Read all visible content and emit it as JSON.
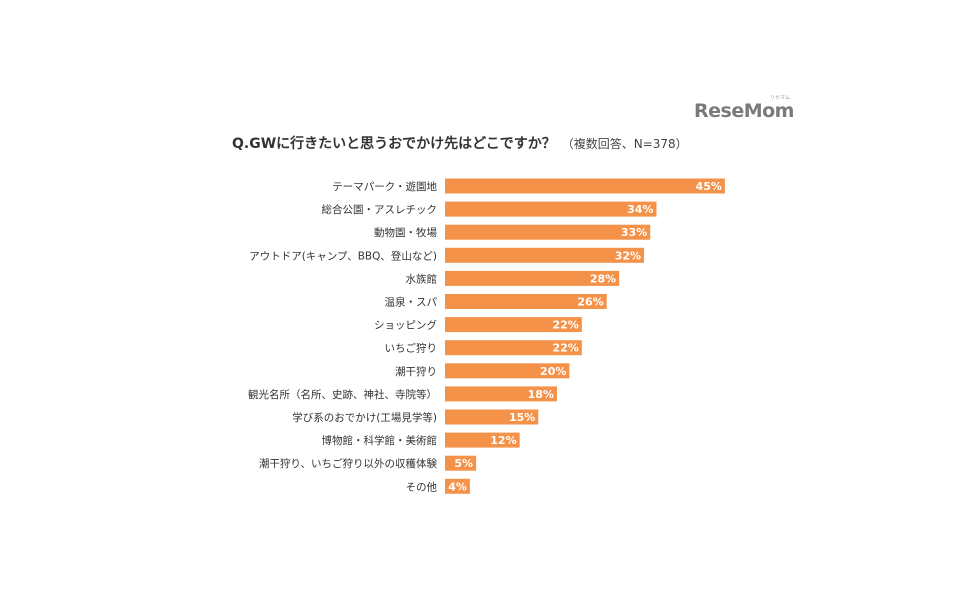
{
  "logo": {
    "text": "ReseMom",
    "sub": "リセマム"
  },
  "title": {
    "main": "Q.GWに行きたいと思うおでかけ先はどこですか？",
    "sub": "（複数回答、N=378）"
  },
  "colors": {
    "bar": "#f5924a"
  },
  "chart_data": {
    "type": "bar",
    "orientation": "horizontal",
    "categories": [
      "テーマパーク・遊園地",
      "総合公園・アスレチック",
      "動物園・牧場",
      "アウトドア(キャンプ、BBQ、登山など)",
      "水族館",
      "温泉・スパ",
      "ショッピング",
      "いちご狩り",
      "潮干狩り",
      "観光名所（名所、史跡、神社、寺院等）",
      "学び系のおでかけ(工場見学等)",
      "博物館・科学館・美術館",
      "潮干狩り、いちご狩り以外の収穫体験",
      "その他"
    ],
    "values": [
      45,
      34,
      33,
      32,
      28,
      26,
      22,
      22,
      20,
      18,
      15,
      12,
      5,
      4
    ],
    "value_labels": [
      "45%",
      "34%",
      "33%",
      "32%",
      "28%",
      "26%",
      "22%",
      "22%",
      "20%",
      "18%",
      "15%",
      "12%",
      "5%",
      "4%"
    ],
    "unit": "%"
  }
}
